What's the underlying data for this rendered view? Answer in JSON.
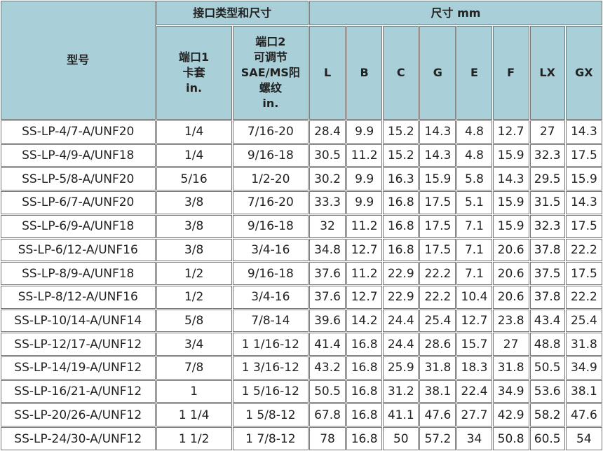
{
  "header": {
    "model": "型号",
    "port_group": "接口类型和尺寸",
    "size_group": "尺寸 mm",
    "port1": [
      "端口1",
      "卡套",
      "in."
    ],
    "port2": [
      "端口2",
      "可调节",
      "SAE/MS阳",
      "螺纹",
      "in."
    ],
    "dims": [
      "L",
      "B",
      "C",
      "G",
      "E",
      "F",
      "LX",
      "GX"
    ]
  },
  "table": {
    "rows": [
      [
        "SS-LP-4/7-A/UNF20",
        "1/4",
        "7/16-20",
        28.4,
        9.9,
        15.2,
        14.3,
        4.8,
        12.7,
        27,
        14.3
      ],
      [
        "SS-LP-4/9-A/UNF18",
        "1/4",
        "9/16-18",
        30.5,
        11.2,
        15.2,
        14.3,
        4.8,
        15.9,
        32.3,
        17.5
      ],
      [
        "SS-LP-5/8-A/UNF20",
        "5/16",
        "1/2-20",
        30.2,
        9.9,
        16.3,
        15.9,
        5.8,
        14.3,
        29.5,
        15.9
      ],
      [
        "SS-LP-6/7-A/UNF20",
        "3/8",
        "7/16-20",
        33.3,
        9.9,
        16.8,
        17.5,
        5.1,
        15.9,
        31.5,
        14.3
      ],
      [
        "SS-LP-6/9-A/UNF18",
        "3/8",
        "9/16-18",
        32,
        11.2,
        16.8,
        17.5,
        7.1,
        15.9,
        32.3,
        17.5
      ],
      [
        "SS-LP-6/12-A/UNF16",
        "3/8",
        "3/4-16",
        34.8,
        12.7,
        16.8,
        17.5,
        7.1,
        20.6,
        37.8,
        22.2
      ],
      [
        "SS-LP-8/9-A/UNF18",
        "1/2",
        "9/16-18",
        37.6,
        11.2,
        22.9,
        22.2,
        7.1,
        20.6,
        37.5,
        17.5
      ],
      [
        "SS-LP-8/12-A/UNF16",
        "1/2",
        "3/4-16",
        37.6,
        12.7,
        22.9,
        22.2,
        10.4,
        20.6,
        37.8,
        22.2
      ],
      [
        "SS-LP-10/14-A/UNF14",
        "5/8",
        "7/8-14",
        39.6,
        14.2,
        24.4,
        25.4,
        12.7,
        23.8,
        43.4,
        25.4
      ],
      [
        "SS-LP-12/17-A/UNF12",
        "3/4",
        "1 1/16-12",
        41.4,
        16.8,
        24.4,
        28.6,
        15.7,
        27,
        48.8,
        31.8
      ],
      [
        "SS-LP-14/19-A/UNF12",
        "7/8",
        "1 3/16-12",
        43.2,
        16.8,
        25.9,
        31.8,
        18.3,
        31.8,
        50.5,
        34.9
      ],
      [
        "SS-LP-16/21-A/UNF12",
        "1",
        "1 5/16-12",
        50.5,
        16.8,
        31.2,
        38.1,
        22.4,
        34.9,
        53.6,
        38.1
      ],
      [
        "SS-LP-20/26-A/UNF12",
        "1 1/4",
        "1 5/8-12",
        67.8,
        16.8,
        41.1,
        47.6,
        27.7,
        42.9,
        58.2,
        47.6
      ],
      [
        "SS-LP-24/30-A/UNF12",
        "1 1/2",
        "1 7/8-12",
        78,
        16.8,
        50,
        57.2,
        34,
        50.8,
        60.5,
        54
      ]
    ]
  }
}
